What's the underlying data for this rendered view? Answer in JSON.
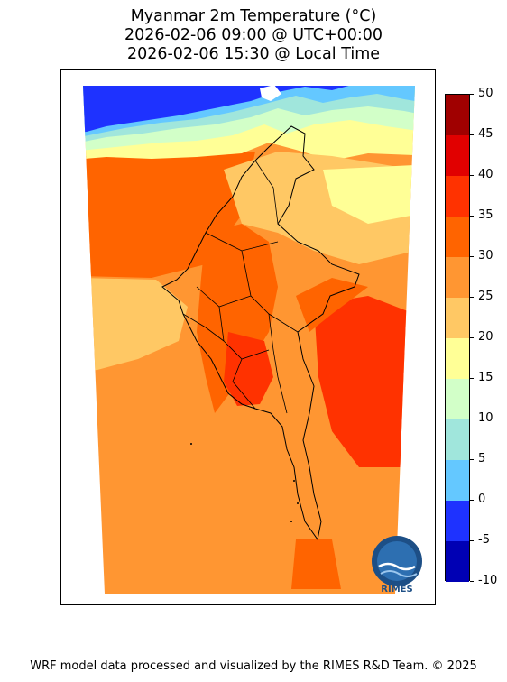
{
  "header": {
    "title_line1": "Myanmar 2m Temperature (°C)",
    "title_line2": "2026-02-06 09:00 @ UTC+00:00",
    "title_line3": "2026-02-06 15:30 @ Local Time"
  },
  "colorbar": {
    "levels": [
      -10,
      -5,
      0,
      5,
      10,
      15,
      20,
      25,
      30,
      35,
      40,
      45,
      50
    ],
    "labels": [
      "-10",
      "-5",
      "0",
      "5",
      "10",
      "15",
      "20",
      "25",
      "30",
      "35",
      "40",
      "45",
      "50"
    ],
    "colors": [
      "#0000b4",
      "#1e32ff",
      "#64c8ff",
      "#a0e6dc",
      "#d2ffc8",
      "#ffff96",
      "#ffc864",
      "#ff9632",
      "#ff6400",
      "#ff3200",
      "#e10000",
      "#a00000"
    ]
  },
  "logo": {
    "text": "RIMES"
  },
  "footer": {
    "credit": "WRF model data processed and visualized by the RIMES R&D Team. © 2025"
  }
}
